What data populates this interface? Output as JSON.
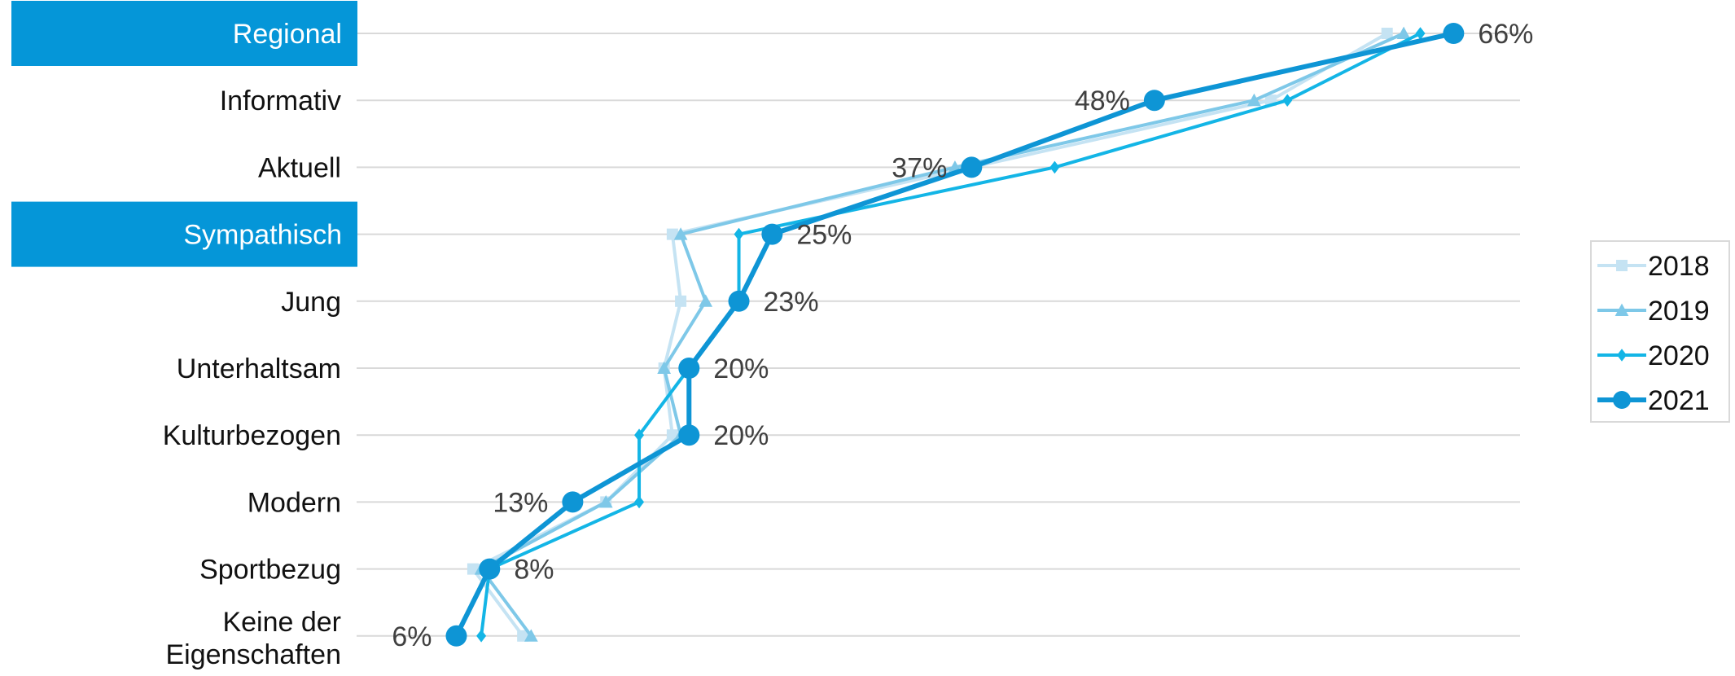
{
  "chart_data": {
    "type": "line",
    "orientation": "horizontal",
    "categories": [
      "Regional",
      "Informativ",
      "Aktuell",
      "Sympathisch",
      "Jung",
      "Unterhaltsam",
      "Kulturbezogen",
      "Modern",
      "Sportbezug",
      "Keine der Eigenschaften"
    ],
    "highlighted_categories": [
      "Regional",
      "Sympathisch"
    ],
    "xlim": [
      0,
      70
    ],
    "grid": true,
    "legend_position": "right",
    "series": [
      {
        "name": "2018",
        "color": "#c5e3f3",
        "marker": "square",
        "values": [
          62,
          55,
          37,
          19,
          19.5,
          18.5,
          19,
          15,
          7,
          10
        ]
      },
      {
        "name": "2019",
        "color": "#7ec8e8",
        "marker": "triangle",
        "values": [
          63,
          54,
          36,
          19.5,
          21,
          18.5,
          19.5,
          15,
          7.5,
          10.5
        ]
      },
      {
        "name": "2020",
        "color": "#13b5e6",
        "marker": "diamond",
        "values": [
          64,
          56,
          42,
          23,
          23,
          20,
          17,
          17,
          8,
          7.5
        ]
      },
      {
        "name": "2021",
        "color": "#0e95d5",
        "marker": "circle",
        "values": [
          66,
          48,
          37,
          25,
          23,
          20,
          20,
          13,
          8,
          6
        ]
      }
    ],
    "data_labels": {
      "series": "2021",
      "texts": [
        "66%",
        "48%",
        "37%",
        "25%",
        "23%",
        "20%",
        "20%",
        "13%",
        "8%",
        "6%"
      ],
      "sides": [
        "right",
        "left",
        "left",
        "right",
        "right",
        "right",
        "right",
        "left",
        "right",
        "left"
      ]
    },
    "highlight_color": "#0596d8"
  }
}
